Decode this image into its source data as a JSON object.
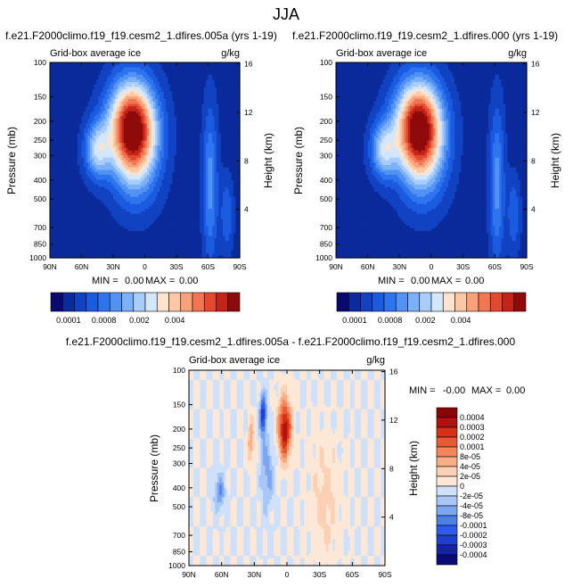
{
  "figure": {
    "main_title": "JJA"
  },
  "colors": {
    "abs_levels": [
      "#0a0a6e",
      "#0b2a9b",
      "#1042c2",
      "#1a5be0",
      "#2f74ef",
      "#5292f5",
      "#7cb0f8",
      "#a9cdfb",
      "#d2e6fc",
      "#fde4cf",
      "#fcc8a4",
      "#f9a27a",
      "#f27652",
      "#e2492e",
      "#c42418",
      "#8f0a0a"
    ],
    "diff_levels": [
      "#0a0a78",
      "#1422a8",
      "#1f3fcf",
      "#2d5de6",
      "#4a7fed",
      "#7aa6f2",
      "#a8c7f7",
      "#cfe1fa",
      "#fde8d8",
      "#fbd0b4",
      "#f8ad86",
      "#f2865a",
      "#e85a33",
      "#d43116",
      "#b41212",
      "#870707"
    ],
    "frame": "#000000"
  },
  "chart_data": [
    {
      "type": "heatmap",
      "panel": "top-left",
      "title": "f.e21.F2000climo.f19_f19.cesm2_1.dfires.005a (yrs 1-19)",
      "subtitle_left": "Grid-box average ice",
      "units": "g/kg",
      "ylabel": "Pressure (mb)",
      "ylabel_right": "Height (km)",
      "x_ticks": [
        "90N",
        "60N",
        "30N",
        "0",
        "30S",
        "60S",
        "90S"
      ],
      "y_ticks": [
        "100",
        "150",
        "200",
        "250",
        "300",
        "400",
        "500",
        "700",
        "850",
        "1000"
      ],
      "y_ticks_right": [
        "16",
        "12",
        "8",
        "4"
      ],
      "stats": {
        "min_label": "MIN =",
        "min": "0.00",
        "max_label": "MAX =",
        "max": "0.00"
      },
      "colorbar": {
        "labels": [
          "0.0001",
          "0.0008",
          "0.002",
          "0.004"
        ],
        "n_levels": 16
      },
      "field": {
        "background_level": 1,
        "blobs": [
          {
            "lat": 12,
            "p": 210,
            "wlat": 22,
            "wp": 110,
            "amp": 14
          },
          {
            "lat": 45,
            "p": 280,
            "wlat": 12,
            "wp": 90,
            "amp": 6
          },
          {
            "lat": 8,
            "p": 330,
            "wlat": 22,
            "wp": 180,
            "amp": 4
          },
          {
            "lat": -62,
            "p": 420,
            "wlat": 7,
            "wp": 380,
            "amp": 4
          },
          {
            "lat": -78,
            "p": 600,
            "wlat": 6,
            "wp": 260,
            "amp": 2.5
          }
        ]
      }
    },
    {
      "type": "heatmap",
      "panel": "top-right",
      "title": "f.e21.F2000climo.f19_f19.cesm2_1.dfires.000 (yrs 1-19)",
      "subtitle_left": "Grid-box average ice",
      "units": "g/kg",
      "ylabel": "Pressure (mb)",
      "ylabel_right": "Height (km)",
      "x_ticks": [
        "90N",
        "60N",
        "30N",
        "0",
        "30S",
        "60S",
        "90S"
      ],
      "y_ticks": [
        "100",
        "150",
        "200",
        "250",
        "300",
        "400",
        "500",
        "700",
        "850",
        "1000"
      ],
      "y_ticks_right": [
        "16",
        "12",
        "8",
        "4"
      ],
      "stats": {
        "min_label": "MIN =",
        "min": "0.00",
        "max_label": "MAX =",
        "max": "0.00"
      },
      "colorbar": {
        "labels": [
          "0.0001",
          "0.0008",
          "0.002",
          "0.004"
        ],
        "n_levels": 16
      },
      "field": {
        "background_level": 1,
        "blobs": [
          {
            "lat": 12,
            "p": 210,
            "wlat": 22,
            "wp": 110,
            "amp": 14
          },
          {
            "lat": 45,
            "p": 280,
            "wlat": 12,
            "wp": 90,
            "amp": 6
          },
          {
            "lat": 8,
            "p": 330,
            "wlat": 22,
            "wp": 180,
            "amp": 4
          },
          {
            "lat": -62,
            "p": 420,
            "wlat": 7,
            "wp": 380,
            "amp": 4
          },
          {
            "lat": -78,
            "p": 600,
            "wlat": 6,
            "wp": 260,
            "amp": 2.5
          }
        ]
      }
    },
    {
      "type": "heatmap",
      "panel": "bottom-difference",
      "title": "f.e21.F2000climo.f19_f19.cesm2_1.dfires.005a - f.e21.F2000climo.f19_f19.cesm2_1.dfires.000",
      "subtitle_left": "Grid-box average ice",
      "units": "g/kg",
      "ylabel": "Pressure (mb)",
      "ylabel_right": "Height (km)",
      "x_ticks": [
        "90N",
        "60N",
        "30N",
        "0",
        "30S",
        "60S",
        "90S"
      ],
      "y_ticks": [
        "100",
        "150",
        "200",
        "250",
        "300",
        "400",
        "500",
        "700",
        "850",
        "1000"
      ],
      "y_ticks_right": [
        "16",
        "12",
        "8",
        "4"
      ],
      "stats": {
        "min_label": "MIN =",
        "min": "-0.00",
        "max_label": "MAX =",
        "max": "0.00"
      },
      "colorbar": {
        "labels": [
          "0.0004",
          "0.0003",
          "0.0002",
          "0.0001",
          "8e-05",
          "4e-05",
          "2e-05",
          "0",
          "-2e-05",
          "-4e-05",
          "-8e-05",
          "-0.0001",
          "-0.0002",
          "-0.0003",
          "-0.0004"
        ],
        "n_levels": 16
      },
      "field": {
        "blobs": [
          {
            "lat": 2,
            "p": 200,
            "wlat": 6,
            "wp": 70,
            "amp": 7
          },
          {
            "lat": 22,
            "p": 170,
            "wlat": 3,
            "wp": 40,
            "amp": -6
          },
          {
            "lat": 33,
            "p": 230,
            "wlat": 3,
            "wp": 60,
            "amp": 3
          },
          {
            "lat": 62,
            "p": 420,
            "wlat": 5,
            "wp": 90,
            "amp": -3
          },
          {
            "lat": 18,
            "p": 330,
            "wlat": 6,
            "wp": 140,
            "amp": -2.5
          },
          {
            "lat": -35,
            "p": 450,
            "wlat": 12,
            "wp": 300,
            "amp": 1.5
          }
        ]
      }
    }
  ]
}
